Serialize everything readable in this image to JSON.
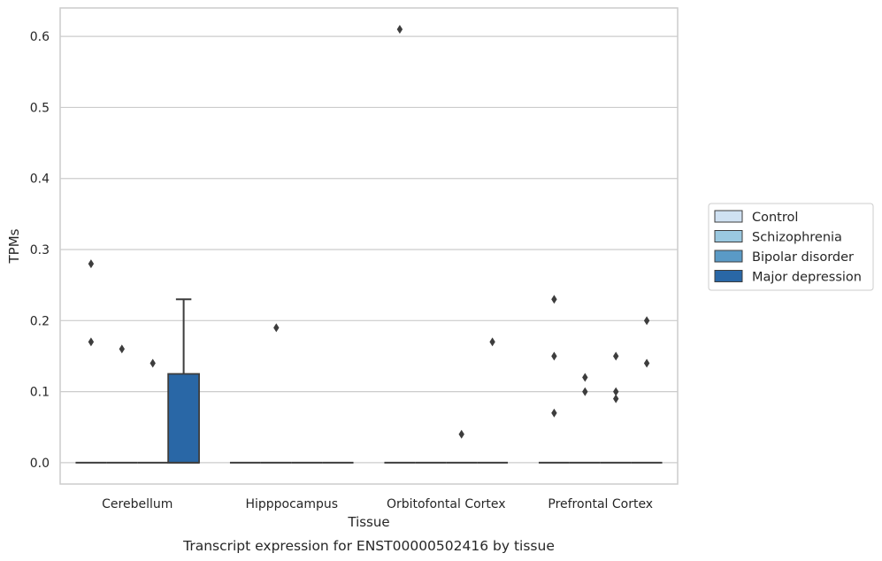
{
  "chart_data": {
    "type": "box",
    "xlabel": "Tissue",
    "ylabel": "TPMs",
    "caption": "Transcript expression for ENST00000502416 by tissue",
    "categories": [
      "Cerebellum",
      "Hipppocampus",
      "Orbitofontal Cortex",
      "Prefrontal Cortex"
    ],
    "ylim": [
      -0.03,
      0.64
    ],
    "yticks": [
      0.0,
      0.1,
      0.2,
      0.3,
      0.4,
      0.5,
      0.6
    ],
    "ytick_labels": [
      "0.0",
      "0.1",
      "0.2",
      "0.3",
      "0.4",
      "0.5",
      "0.6"
    ],
    "grid": true,
    "legend_position": "right",
    "series": [
      {
        "name": "Control",
        "color": "#cfe1f2",
        "boxes": [
          {
            "category": "Cerebellum",
            "q1": 0,
            "median": 0,
            "q3": 0,
            "whislo": 0,
            "whishi": 0,
            "fliers": [
              0.28,
              0.17
            ]
          },
          {
            "category": "Hipppocampus",
            "q1": 0,
            "median": 0,
            "q3": 0,
            "whislo": 0,
            "whishi": 0,
            "fliers": []
          },
          {
            "category": "Orbitofontal Cortex",
            "q1": 0,
            "median": 0,
            "q3": 0,
            "whislo": 0,
            "whishi": 0,
            "fliers": [
              0.61
            ]
          },
          {
            "category": "Prefrontal Cortex",
            "q1": 0,
            "median": 0,
            "q3": 0,
            "whislo": 0,
            "whishi": 0,
            "fliers": [
              0.23,
              0.15,
              0.07
            ]
          }
        ]
      },
      {
        "name": "Schizophrenia",
        "color": "#9ac8e0",
        "boxes": [
          {
            "category": "Cerebellum",
            "q1": 0,
            "median": 0,
            "q3": 0,
            "whislo": 0,
            "whishi": 0,
            "fliers": [
              0.16
            ]
          },
          {
            "category": "Hipppocampus",
            "q1": 0,
            "median": 0,
            "q3": 0,
            "whislo": 0,
            "whishi": 0,
            "fliers": [
              0.19
            ]
          },
          {
            "category": "Orbitofontal Cortex",
            "q1": 0,
            "median": 0,
            "q3": 0,
            "whislo": 0,
            "whishi": 0,
            "fliers": []
          },
          {
            "category": "Prefrontal Cortex",
            "q1": 0,
            "median": 0,
            "q3": 0,
            "whislo": 0,
            "whishi": 0,
            "fliers": [
              0.12,
              0.1
            ]
          }
        ]
      },
      {
        "name": "Bipolar disorder",
        "color": "#5a9ac6",
        "boxes": [
          {
            "category": "Cerebellum",
            "q1": 0,
            "median": 0,
            "q3": 0,
            "whislo": 0,
            "whishi": 0,
            "fliers": [
              0.14
            ]
          },
          {
            "category": "Hipppocampus",
            "q1": 0,
            "median": 0,
            "q3": 0,
            "whislo": 0,
            "whishi": 0,
            "fliers": []
          },
          {
            "category": "Orbitofontal Cortex",
            "q1": 0,
            "median": 0,
            "q3": 0,
            "whislo": 0,
            "whishi": 0,
            "fliers": [
              0.04
            ]
          },
          {
            "category": "Prefrontal Cortex",
            "q1": 0,
            "median": 0,
            "q3": 0,
            "whislo": 0,
            "whishi": 0,
            "fliers": [
              0.15,
              0.1,
              0.09
            ]
          }
        ]
      },
      {
        "name": "Major depression",
        "color": "#2967a6",
        "boxes": [
          {
            "category": "Cerebellum",
            "q1": 0,
            "median": 0,
            "q3": 0.125,
            "whislo": 0,
            "whishi": 0.23,
            "fliers": []
          },
          {
            "category": "Hipppocampus",
            "q1": 0,
            "median": 0,
            "q3": 0,
            "whislo": 0,
            "whishi": 0,
            "fliers": []
          },
          {
            "category": "Orbitofontal Cortex",
            "q1": 0,
            "median": 0,
            "q3": 0,
            "whislo": 0,
            "whishi": 0,
            "fliers": [
              0.17
            ]
          },
          {
            "category": "Prefrontal Cortex",
            "q1": 0,
            "median": 0,
            "q3": 0,
            "whislo": 0,
            "whishi": 0,
            "fliers": [
              0.2,
              0.14
            ]
          }
        ]
      }
    ]
  }
}
